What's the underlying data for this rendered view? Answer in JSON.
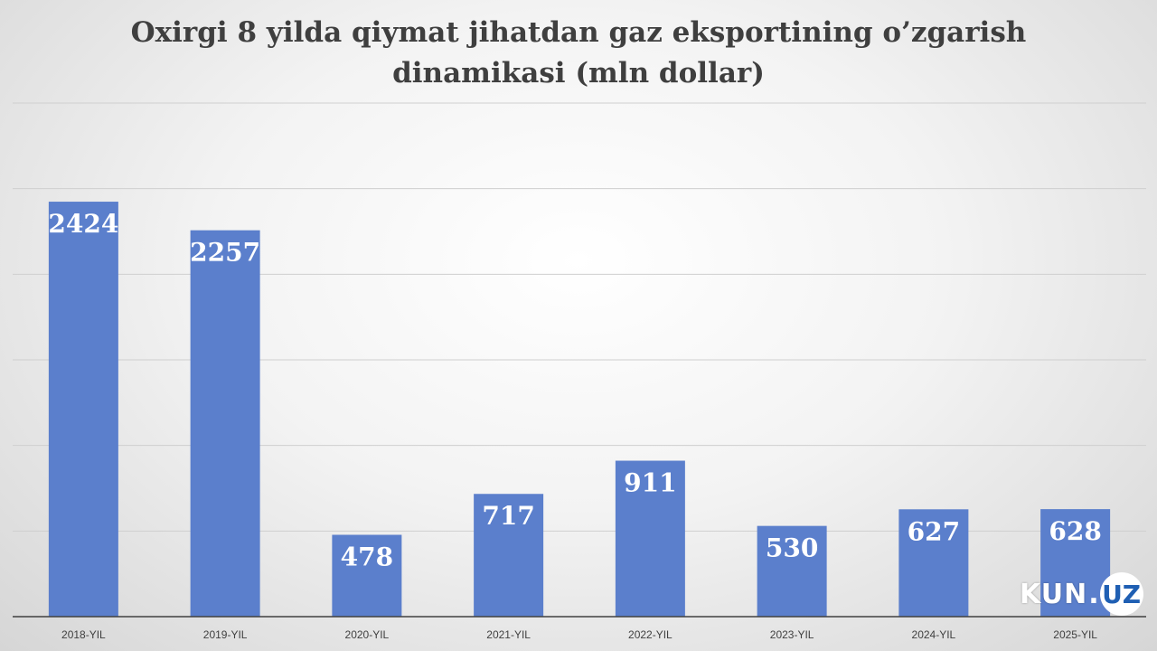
{
  "chart_data": {
    "type": "bar",
    "title_lines": [
      "Oxirgi 8 yilda qiymat jihatdan gaz eksportining o’zgarish",
      "dinamikasi (mln dollar)"
    ],
    "categories": [
      "2018-YIL",
      "2019-YIL",
      "2020-YIL",
      "2021-YIL",
      "2022-YIL",
      "2023-YIL",
      "2024-YIL",
      "2025-YIL"
    ],
    "values": [
      2424,
      2257,
      478,
      717,
      911,
      530,
      627,
      628
    ],
    "ylim": [
      0,
      3000
    ],
    "y_gridlines": [
      500,
      1000,
      1500,
      2000,
      2500,
      3000
    ],
    "grid": true,
    "y_axis_labels": false,
    "bar_color": "#5b7fcc",
    "data_label_color": "#ffffff"
  },
  "brand": {
    "logo_kun": "KUN",
    "logo_dot": ".",
    "logo_uz": "UZ",
    "uz_color": "#1f5fb3"
  }
}
